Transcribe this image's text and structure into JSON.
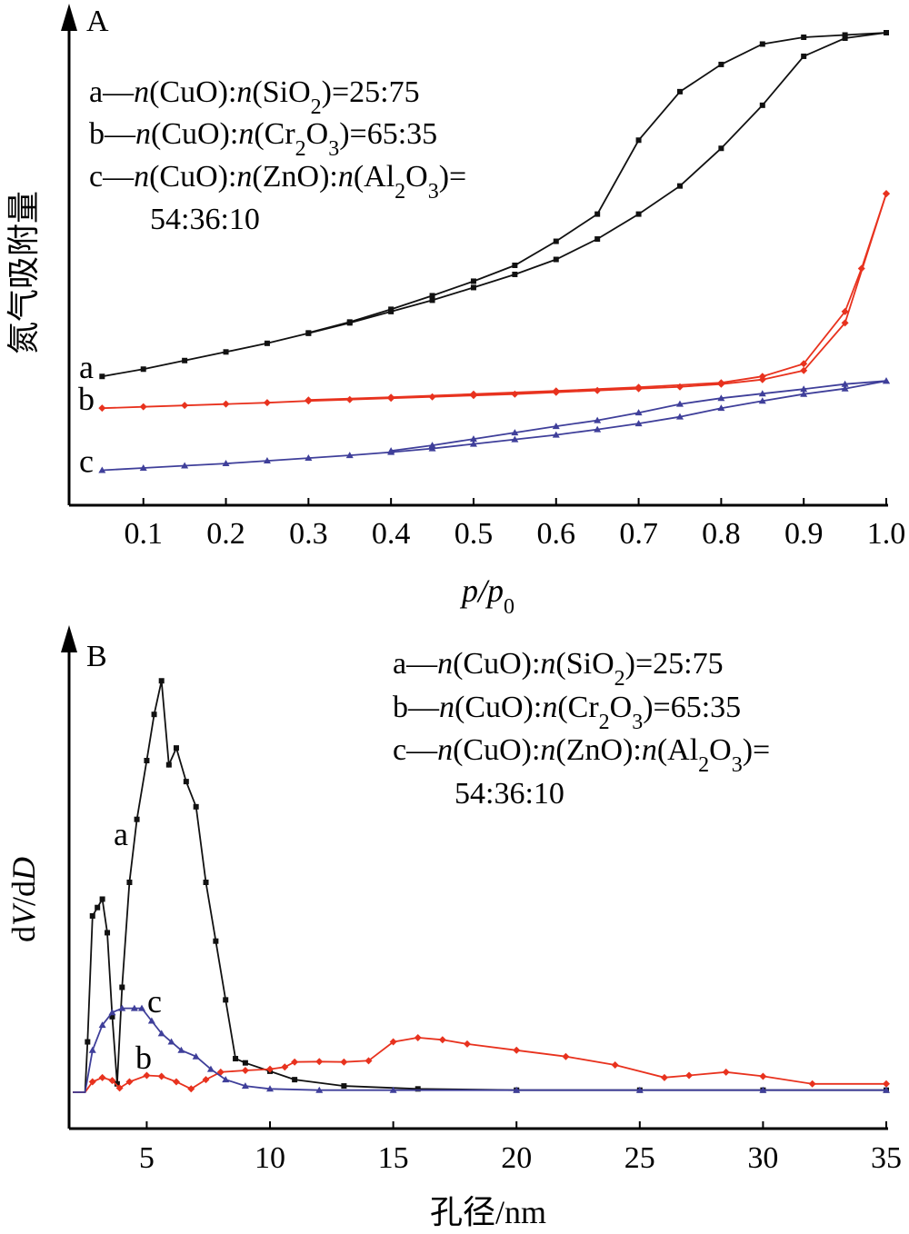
{
  "chart_data": [
    {
      "panel": "A",
      "type": "line",
      "xlabel": "p/p0",
      "xlabel_main": "p/p",
      "xlabel_sub": "0",
      "ylabel": "氮气吸附量",
      "xlim": [
        0.05,
        1.0
      ],
      "ylim": [
        0,
        1
      ],
      "x_ticks": [
        "0.1",
        "0.2",
        "0.3",
        "0.4",
        "0.5",
        "0.6",
        "0.7",
        "0.8",
        "0.9",
        "1.0"
      ],
      "x_tick_values": [
        0.1,
        0.2,
        0.3,
        0.4,
        0.5,
        0.6,
        0.7,
        0.8,
        0.9,
        1.0
      ],
      "legend": [
        {
          "prefix": "a—",
          "formula": "n(CuO):n(SiO2)=25:75"
        },
        {
          "prefix": "b—",
          "formula": "n(CuO):n(Cr2O3)=65:35"
        },
        {
          "prefix": "c—",
          "formula": "n(CuO):n(ZnO):n(Al2O3)="
        },
        {
          "prefix": "",
          "formula": "54:36:10"
        }
      ],
      "series": [
        {
          "name": "a",
          "color": "#111111",
          "marker": "square",
          "adsorption": [
            [
              0.05,
              0.242
            ],
            [
              0.1,
              0.258
            ],
            [
              0.15,
              0.277
            ],
            [
              0.2,
              0.296
            ],
            [
              0.25,
              0.315
            ],
            [
              0.3,
              0.337
            ],
            [
              0.35,
              0.36
            ],
            [
              0.4,
              0.385
            ],
            [
              0.45,
              0.41
            ],
            [
              0.5,
              0.438
            ],
            [
              0.55,
              0.467
            ],
            [
              0.6,
              0.5
            ],
            [
              0.65,
              0.545
            ],
            [
              0.7,
              0.6
            ],
            [
              0.75,
              0.662
            ],
            [
              0.8,
              0.745
            ],
            [
              0.85,
              0.84
            ],
            [
              0.9,
              0.948
            ],
            [
              0.95,
              0.988
            ],
            [
              1.0,
              1.0
            ]
          ],
          "desorption": [
            [
              1.0,
              1.0
            ],
            [
              0.95,
              0.995
            ],
            [
              0.9,
              0.99
            ],
            [
              0.85,
              0.975
            ],
            [
              0.8,
              0.93
            ],
            [
              0.75,
              0.87
            ],
            [
              0.7,
              0.763
            ],
            [
              0.65,
              0.6
            ],
            [
              0.6,
              0.54
            ],
            [
              0.55,
              0.487
            ],
            [
              0.5,
              0.452
            ],
            [
              0.45,
              0.42
            ],
            [
              0.4,
              0.39
            ],
            [
              0.35,
              0.362
            ],
            [
              0.3,
              0.338
            ]
          ]
        },
        {
          "name": "b",
          "color": "#e8321e",
          "marker": "diamond",
          "adsorption": [
            [
              0.05,
              0.172
            ],
            [
              0.1,
              0.175
            ],
            [
              0.15,
              0.178
            ],
            [
              0.2,
              0.181
            ],
            [
              0.25,
              0.184
            ],
            [
              0.3,
              0.188
            ],
            [
              0.35,
              0.191
            ],
            [
              0.4,
              0.194
            ],
            [
              0.45,
              0.197
            ],
            [
              0.5,
              0.2
            ],
            [
              0.55,
              0.203
            ],
            [
              0.6,
              0.207
            ],
            [
              0.65,
              0.211
            ],
            [
              0.7,
              0.215
            ],
            [
              0.75,
              0.219
            ],
            [
              0.8,
              0.225
            ],
            [
              0.85,
              0.235
            ],
            [
              0.9,
              0.255
            ],
            [
              0.95,
              0.36
            ],
            [
              1.0,
              0.645
            ]
          ],
          "desorption": [
            [
              1.0,
              0.645
            ],
            [
              0.97,
              0.48
            ],
            [
              0.95,
              0.385
            ],
            [
              0.9,
              0.27
            ],
            [
              0.85,
              0.242
            ],
            [
              0.8,
              0.228
            ],
            [
              0.7,
              0.218
            ],
            [
              0.6,
              0.21
            ],
            [
              0.5,
              0.203
            ],
            [
              0.4,
              0.196
            ],
            [
              0.3,
              0.19
            ]
          ]
        },
        {
          "name": "c",
          "color": "#3f3f9a",
          "marker": "triangle",
          "adsorption": [
            [
              0.05,
              0.035
            ],
            [
              0.1,
              0.04
            ],
            [
              0.15,
              0.045
            ],
            [
              0.2,
              0.05
            ],
            [
              0.25,
              0.056
            ],
            [
              0.3,
              0.062
            ],
            [
              0.35,
              0.068
            ],
            [
              0.4,
              0.075
            ],
            [
              0.45,
              0.083
            ],
            [
              0.5,
              0.093
            ],
            [
              0.55,
              0.103
            ],
            [
              0.6,
              0.113
            ],
            [
              0.65,
              0.125
            ],
            [
              0.7,
              0.138
            ],
            [
              0.75,
              0.153
            ],
            [
              0.8,
              0.172
            ],
            [
              0.85,
              0.188
            ],
            [
              0.9,
              0.203
            ],
            [
              0.95,
              0.215
            ],
            [
              1.0,
              0.232
            ]
          ],
          "desorption": [
            [
              1.0,
              0.232
            ],
            [
              0.95,
              0.225
            ],
            [
              0.9,
              0.214
            ],
            [
              0.85,
              0.204
            ],
            [
              0.8,
              0.194
            ],
            [
              0.75,
              0.181
            ],
            [
              0.7,
              0.162
            ],
            [
              0.65,
              0.145
            ],
            [
              0.6,
              0.132
            ],
            [
              0.55,
              0.118
            ],
            [
              0.5,
              0.104
            ],
            [
              0.45,
              0.09
            ],
            [
              0.4,
              0.078
            ]
          ]
        }
      ]
    },
    {
      "panel": "B",
      "type": "line",
      "xlabel": "孔径/nm",
      "ylabel": "dV/dD",
      "ylabel_parts": [
        "d",
        "V",
        "/d",
        "D"
      ],
      "xlim": [
        2.0,
        35.0
      ],
      "ylim": [
        0,
        1
      ],
      "x_ticks": [
        "5",
        "10",
        "15",
        "20",
        "25",
        "30",
        "35"
      ],
      "x_tick_values": [
        5,
        10,
        15,
        20,
        25,
        30,
        35
      ],
      "legend": [
        {
          "prefix": "a—",
          "formula": "n(CuO):n(SiO2)=25:75"
        },
        {
          "prefix": "b—",
          "formula": "n(CuO):n(Cr2O3)=65:35"
        },
        {
          "prefix": "c—",
          "formula": "n(CuO):n(ZnO):n(Al2O3)="
        },
        {
          "prefix": "",
          "formula": "54:36:10"
        }
      ],
      "series": [
        {
          "name": "a",
          "color": "#111111",
          "marker": "square",
          "points": [
            [
              2.0,
              0.0
            ],
            [
              2.5,
              0.0
            ],
            [
              2.6,
              0.12
            ],
            [
              2.8,
              0.42
            ],
            [
              3.0,
              0.44
            ],
            [
              3.2,
              0.46
            ],
            [
              3.4,
              0.38
            ],
            [
              3.6,
              0.18
            ],
            [
              3.8,
              0.02
            ],
            [
              4.0,
              0.25
            ],
            [
              4.3,
              0.5
            ],
            [
              4.6,
              0.65
            ],
            [
              5.0,
              0.79
            ],
            [
              5.3,
              0.9
            ],
            [
              5.6,
              0.98
            ],
            [
              5.9,
              0.78
            ],
            [
              6.2,
              0.82
            ],
            [
              6.6,
              0.74
            ],
            [
              7.0,
              0.68
            ],
            [
              7.4,
              0.5
            ],
            [
              7.8,
              0.36
            ],
            [
              8.2,
              0.22
            ],
            [
              8.6,
              0.08
            ],
            [
              9.0,
              0.07
            ],
            [
              10.0,
              0.05
            ],
            [
              11.0,
              0.03
            ],
            [
              13.0,
              0.015
            ],
            [
              16.0,
              0.008
            ],
            [
              20.0,
              0.005
            ],
            [
              25.0,
              0.005
            ],
            [
              30.0,
              0.005
            ],
            [
              35.0,
              0.005
            ]
          ]
        },
        {
          "name": "b",
          "color": "#e8321e",
          "marker": "diamond",
          "points": [
            [
              2.0,
              0.0
            ],
            [
              2.5,
              0.0
            ],
            [
              2.8,
              0.025
            ],
            [
              3.2,
              0.035
            ],
            [
              3.6,
              0.028
            ],
            [
              3.9,
              0.01
            ],
            [
              4.3,
              0.025
            ],
            [
              5.0,
              0.04
            ],
            [
              5.6,
              0.038
            ],
            [
              6.2,
              0.025
            ],
            [
              6.8,
              0.008
            ],
            [
              7.4,
              0.03
            ],
            [
              8.0,
              0.048
            ],
            [
              9.0,
              0.052
            ],
            [
              10.0,
              0.055
            ],
            [
              10.6,
              0.06
            ],
            [
              11.0,
              0.072
            ],
            [
              12.0,
              0.073
            ],
            [
              13.0,
              0.072
            ],
            [
              14.0,
              0.075
            ],
            [
              15.0,
              0.12
            ],
            [
              16.0,
              0.13
            ],
            [
              17.0,
              0.125
            ],
            [
              18.0,
              0.115
            ],
            [
              20.0,
              0.1
            ],
            [
              22.0,
              0.085
            ],
            [
              24.0,
              0.065
            ],
            [
              26.0,
              0.035
            ],
            [
              27.0,
              0.04
            ],
            [
              28.5,
              0.048
            ],
            [
              30.0,
              0.038
            ],
            [
              32.0,
              0.02
            ],
            [
              35.0,
              0.02
            ]
          ]
        },
        {
          "name": "c",
          "color": "#3f3f9a",
          "marker": "triangle",
          "points": [
            [
              2.0,
              0.0
            ],
            [
              2.5,
              0.0
            ],
            [
              2.8,
              0.1
            ],
            [
              3.2,
              0.16
            ],
            [
              3.6,
              0.19
            ],
            [
              4.0,
              0.2
            ],
            [
              4.5,
              0.2
            ],
            [
              4.8,
              0.2
            ],
            [
              5.2,
              0.17
            ],
            [
              5.6,
              0.14
            ],
            [
              6.0,
              0.12
            ],
            [
              6.4,
              0.1
            ],
            [
              7.0,
              0.085
            ],
            [
              7.6,
              0.055
            ],
            [
              8.2,
              0.03
            ],
            [
              9.0,
              0.015
            ],
            [
              10.0,
              0.008
            ],
            [
              12.0,
              0.005
            ],
            [
              15.0,
              0.005
            ],
            [
              20.0,
              0.005
            ],
            [
              25.0,
              0.005
            ],
            [
              30.0,
              0.005
            ],
            [
              35.0,
              0.005
            ]
          ]
        }
      ]
    }
  ]
}
